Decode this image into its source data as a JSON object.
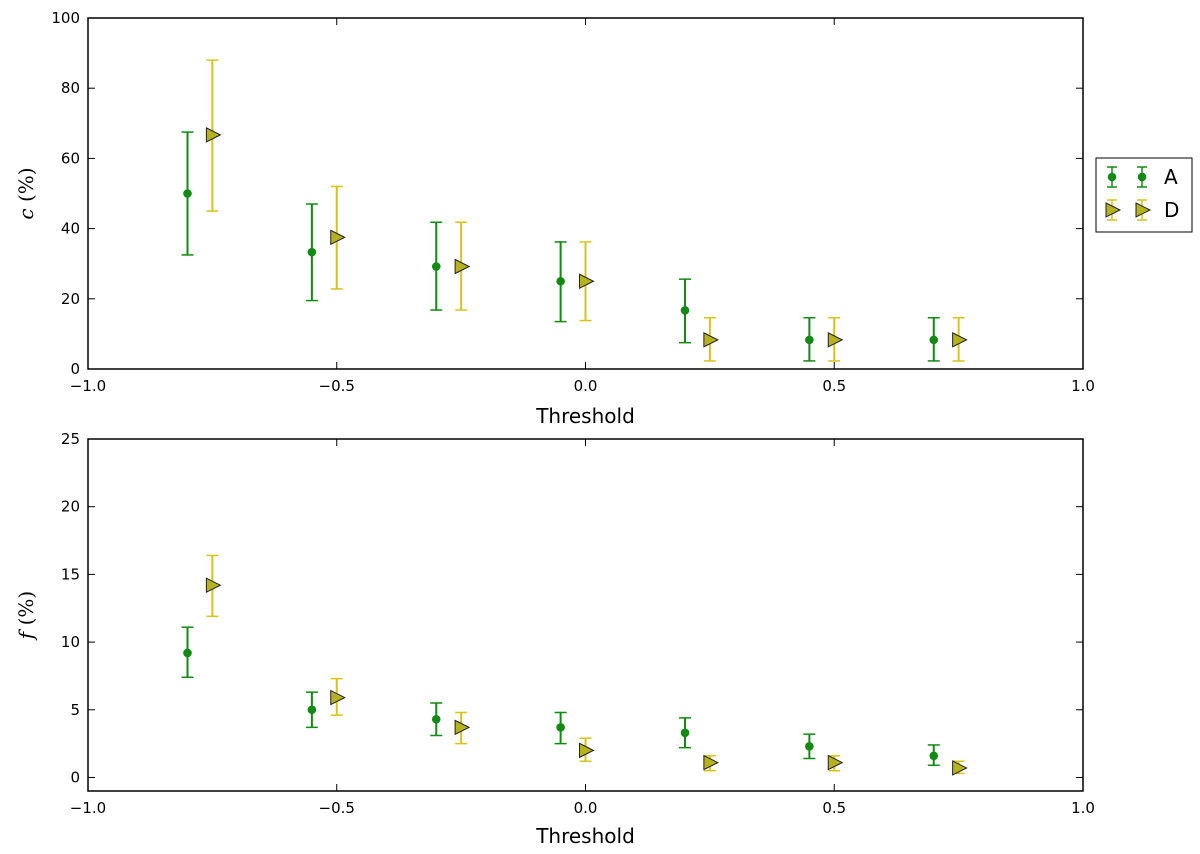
{
  "chart_data": [
    {
      "type": "scatter",
      "panel": "top",
      "xlabel": "Threshold",
      "ylabel_var": "c",
      "ylabel_unit": " (%)",
      "xlim": [
        -1.0,
        1.0
      ],
      "ylim": [
        0,
        100
      ],
      "xticks": [
        -1.0,
        -0.5,
        0.0,
        0.5,
        1.0
      ],
      "xtick_labels": [
        "−1.0",
        "−0.5",
        "0.0",
        "0.5",
        "1.0"
      ],
      "yticks": [
        0,
        20,
        40,
        60,
        80,
        100
      ],
      "ytick_labels": [
        "0",
        "20",
        "40",
        "60",
        "80",
        "100"
      ],
      "series": [
        {
          "name": "A",
          "marker": "circle",
          "color": "#138a13",
          "x": [
            -0.8,
            -0.55,
            -0.3,
            -0.05,
            0.2,
            0.45,
            0.7
          ],
          "y": [
            50,
            33.3,
            29.2,
            25,
            16.7,
            8.3,
            8.3
          ],
          "yerr_low": [
            32.5,
            19.5,
            16.8,
            13.5,
            7.5,
            2.3,
            2.3
          ],
          "yerr_high": [
            67.5,
            47,
            41.8,
            36.2,
            25.6,
            14.6,
            14.6
          ]
        },
        {
          "name": "D",
          "marker": "triangle-right",
          "color": "#b5b21e",
          "errcolor": "#d6c41b",
          "x": [
            -0.75,
            -0.5,
            -0.25,
            0.0,
            0.25,
            0.5,
            0.75
          ],
          "y": [
            66.7,
            37.5,
            29.2,
            25,
            8.3,
            8.3,
            8.3
          ],
          "yerr_low": [
            45,
            22.8,
            16.8,
            13.8,
            2.3,
            2.3,
            2.3
          ],
          "yerr_high": [
            88,
            52,
            41.8,
            36.2,
            14.6,
            14.6,
            14.6
          ]
        }
      ]
    },
    {
      "type": "scatter",
      "panel": "bottom",
      "xlabel": "Threshold",
      "ylabel_var": "f",
      "ylabel_unit": " (%)",
      "xlim": [
        -1.0,
        1.0
      ],
      "ylim": [
        -1,
        25
      ],
      "xticks": [
        -1.0,
        -0.5,
        0.0,
        0.5,
        1.0
      ],
      "xtick_labels": [
        "−1.0",
        "−0.5",
        "0.0",
        "0.5",
        "1.0"
      ],
      "yticks": [
        0,
        5,
        10,
        15,
        20,
        25
      ],
      "ytick_labels": [
        "0",
        "5",
        "10",
        "15",
        "20",
        "25"
      ],
      "series": [
        {
          "name": "A",
          "marker": "circle",
          "color": "#138a13",
          "x": [
            -0.8,
            -0.55,
            -0.3,
            -0.05,
            0.2,
            0.45,
            0.7
          ],
          "y": [
            9.2,
            5.0,
            4.3,
            3.7,
            3.3,
            2.3,
            1.6
          ],
          "yerr_low": [
            7.4,
            3.7,
            3.1,
            2.5,
            2.2,
            1.4,
            0.9
          ],
          "yerr_high": [
            11.1,
            6.3,
            5.5,
            4.8,
            4.4,
            3.2,
            2.4
          ]
        },
        {
          "name": "D",
          "marker": "triangle-right",
          "color": "#b5b21e",
          "errcolor": "#d6c41b",
          "x": [
            -0.75,
            -0.5,
            -0.25,
            0.0,
            0.25,
            0.5,
            0.75
          ],
          "y": [
            14.2,
            5.9,
            3.7,
            2.0,
            1.1,
            1.1,
            0.7
          ],
          "yerr_low": [
            11.9,
            4.6,
            2.5,
            1.2,
            0.5,
            0.5,
            0.3
          ],
          "yerr_high": [
            16.4,
            7.3,
            4.8,
            2.9,
            1.6,
            1.6,
            1.2
          ]
        }
      ]
    }
  ],
  "legend": {
    "placement": "right of top panel",
    "entries": [
      {
        "label": "A",
        "marker": "circle",
        "color": "#138a13"
      },
      {
        "label": "D",
        "marker": "triangle-right",
        "color": "#b5b21e",
        "errcolor": "#d6c41b"
      }
    ]
  }
}
